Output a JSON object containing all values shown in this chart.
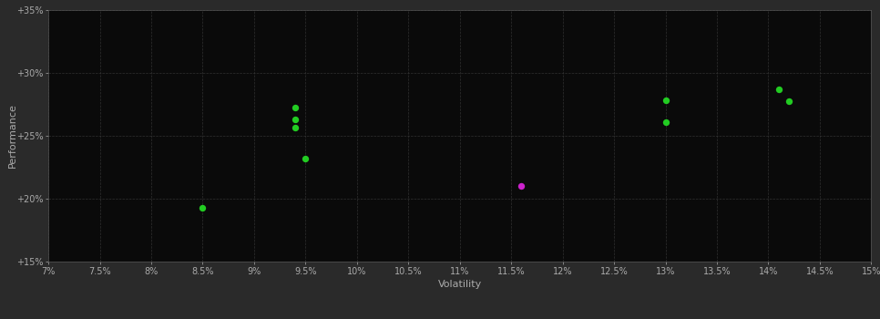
{
  "background_color": "#2a2a2a",
  "plot_bg_color": "#0a0a0a",
  "grid_color": "#404040",
  "text_color": "#aaaaaa",
  "xlabel": "Volatility",
  "ylabel": "Performance",
  "xlim": [
    0.07,
    0.15
  ],
  "ylim": [
    0.15,
    0.35
  ],
  "xticks": [
    0.07,
    0.075,
    0.08,
    0.085,
    0.09,
    0.095,
    0.1,
    0.105,
    0.11,
    0.115,
    0.12,
    0.125,
    0.13,
    0.135,
    0.14,
    0.145,
    0.15
  ],
  "yticks": [
    0.15,
    0.2,
    0.25,
    0.3,
    0.35
  ],
  "xtick_labels": [
    "7%",
    "7.5%",
    "8%",
    "8.5%",
    "9%",
    "9.5%",
    "10%",
    "10.5%",
    "11%",
    "11.5%",
    "12%",
    "12.5%",
    "13%",
    "13.5%",
    "14%",
    "14.5%",
    "15%"
  ],
  "ytick_labels": [
    "+15%",
    "+20%",
    "+25%",
    "+30%",
    "+35%"
  ],
  "green_points": [
    [
      0.085,
      0.193
    ],
    [
      0.094,
      0.272
    ],
    [
      0.094,
      0.263
    ],
    [
      0.094,
      0.256
    ],
    [
      0.095,
      0.232
    ],
    [
      0.13,
      0.278
    ],
    [
      0.13,
      0.261
    ],
    [
      0.141,
      0.287
    ],
    [
      0.142,
      0.277
    ]
  ],
  "magenta_points": [
    [
      0.116,
      0.21
    ]
  ],
  "green_color": "#22cc22",
  "magenta_color": "#cc22cc",
  "marker_size": 28
}
